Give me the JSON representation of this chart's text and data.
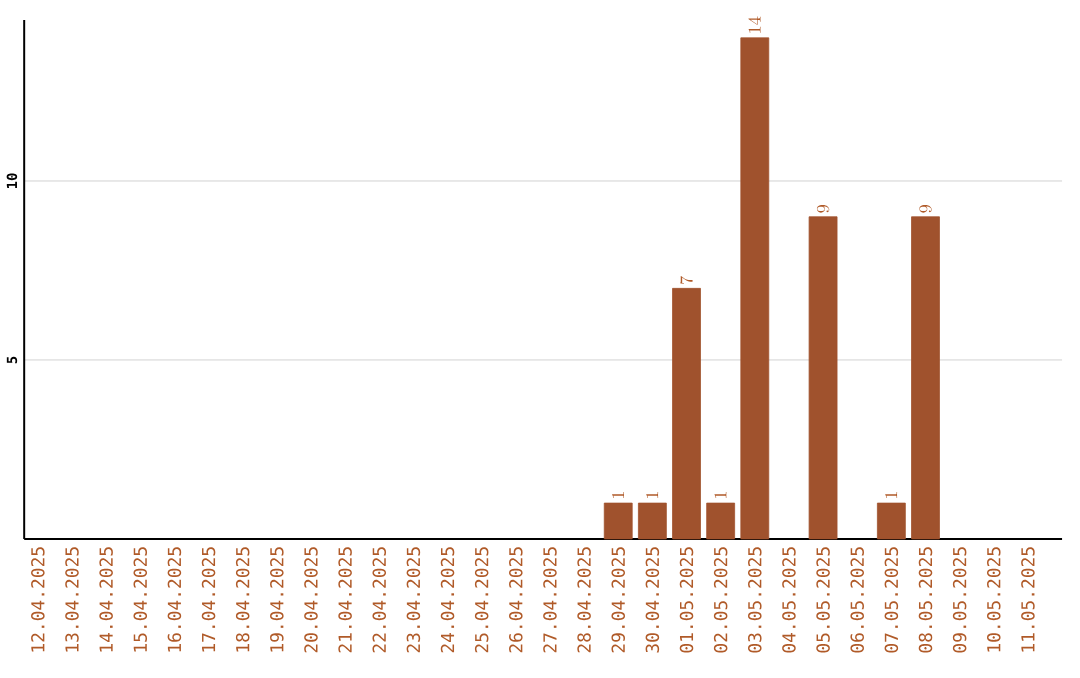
{
  "chart_data": {
    "type": "bar",
    "categories": [
      "12.04.2025",
      "13.04.2025",
      "14.04.2025",
      "15.04.2025",
      "16.04.2025",
      "17.04.2025",
      "18.04.2025",
      "19.04.2025",
      "20.04.2025",
      "21.04.2025",
      "22.04.2025",
      "23.04.2025",
      "24.04.2025",
      "25.04.2025",
      "26.04.2025",
      "27.04.2025",
      "28.04.2025",
      "29.04.2025",
      "30.04.2025",
      "01.05.2025",
      "02.05.2025",
      "03.05.2025",
      "04.05.2025",
      "05.05.2025",
      "06.05.2025",
      "07.05.2025",
      "08.05.2025",
      "09.05.2025",
      "10.05.2025",
      "11.05.2025"
    ],
    "values": [
      null,
      null,
      null,
      null,
      null,
      null,
      null,
      null,
      null,
      null,
      null,
      null,
      null,
      null,
      null,
      null,
      null,
      1,
      1,
      7,
      1,
      14,
      null,
      9,
      null,
      1,
      9,
      null,
      null,
      null
    ],
    "color": "#a0522d",
    "ylim": [
      0,
      14.5
    ],
    "yticks": [
      5,
      10
    ],
    "grid": "y",
    "data_labels": true
  }
}
